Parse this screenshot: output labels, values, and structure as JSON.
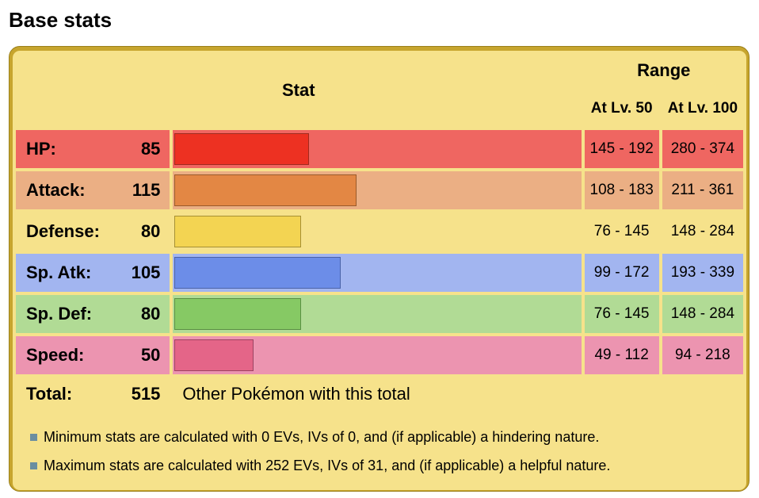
{
  "heading": "Base stats",
  "header": {
    "stat": "Stat",
    "range": "Range",
    "lv50": "At Lv. 50",
    "lv100": "At Lv. 100"
  },
  "max_base_stat": 255,
  "stats": [
    {
      "label": "HP:",
      "value": "85",
      "lv50": "145 - 192",
      "lv100": "280 - 374",
      "row_color": "#ef6661",
      "bar_color": "#ed3122",
      "bar_border": "#a02a1e"
    },
    {
      "label": "Attack:",
      "value": "115",
      "lv50": "108 - 183",
      "lv100": "211 - 361",
      "row_color": "#ebaf84",
      "bar_color": "#e38744",
      "bar_border": "#9a5a2a"
    },
    {
      "label": "Defense:",
      "value": "80",
      "lv50": "76 - 145",
      "lv100": "148 - 284",
      "row_color": "#f6e28b",
      "bar_color": "#f3d452",
      "bar_border": "#a69034"
    },
    {
      "label": "Sp. Atk:",
      "value": "105",
      "lv50": "99 - 172",
      "lv100": "193 - 339",
      "row_color": "#a2b5f0",
      "bar_color": "#6c8de8",
      "bar_border": "#4a62a8"
    },
    {
      "label": "Sp. Def:",
      "value": "80",
      "lv50": "76 - 145",
      "lv100": "148 - 284",
      "row_color": "#b1db95",
      "bar_color": "#86c964",
      "bar_border": "#5a8f44"
    },
    {
      "label": "Speed:",
      "value": "50",
      "lv50": "49 - 112",
      "lv100": "94 - 218",
      "row_color": "#ec94b0",
      "bar_color": "#e46588",
      "bar_border": "#9c4462"
    }
  ],
  "total": {
    "label": "Total:",
    "value": "515",
    "link_text": "Other Pokémon with this total"
  },
  "notes": [
    "Minimum stats are calculated with 0 EVs, IVs of 0, and (if applicable) a hindering nature.",
    "Maximum stats are calculated with 252 EVs, IVs of 31, and (if applicable) a helpful nature."
  ]
}
